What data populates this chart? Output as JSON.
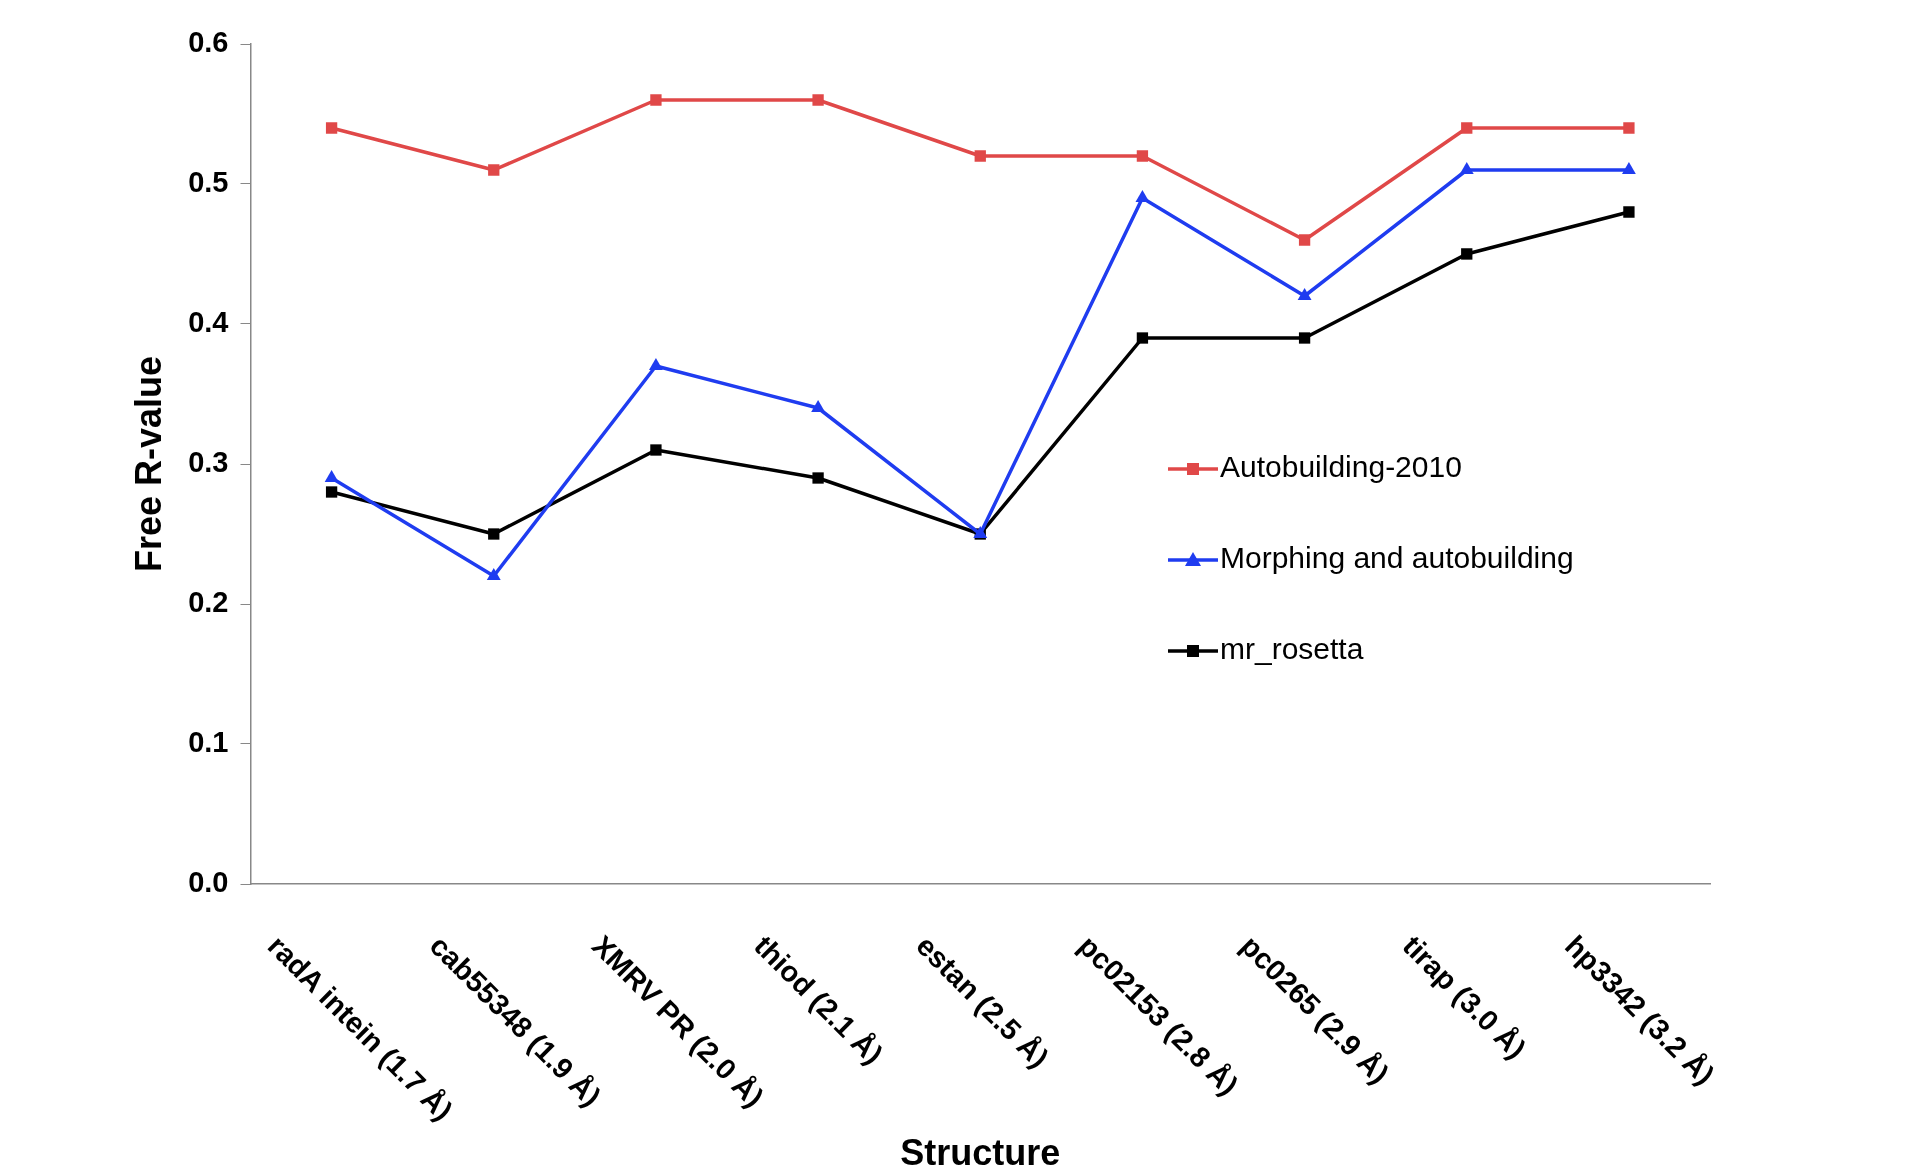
{
  "chart_data": {
    "type": "line",
    "xlabel": "Structure",
    "ylabel": "Free R-value",
    "categories": [
      "radA intein (1.7 Å)",
      "cab55348 (1.9 Å)",
      "XMRV PR (2.0 Å)",
      "thiod (2.1 Å)",
      "estan (2.5 Å)",
      "pc02153 (2.8 Å)",
      "pc0265 (2.9 Å)",
      "tirap (3.0 Å)",
      "hp3342 (3.2 Å)"
    ],
    "series": [
      {
        "name": "Autobuilding-2010",
        "color": "#e04848",
        "marker": "square",
        "values": [
          0.54,
          0.51,
          0.56,
          0.56,
          0.52,
          0.52,
          0.46,
          0.54,
          0.54
        ]
      },
      {
        "name": "Morphing and autobuilding",
        "color": "#1f3cf0",
        "marker": "triangle",
        "values": [
          0.29,
          0.22,
          0.37,
          0.34,
          0.25,
          0.49,
          0.42,
          0.51,
          0.51
        ]
      },
      {
        "name": "mr_rosetta",
        "color": "#000000",
        "marker": "square",
        "values": [
          0.28,
          0.25,
          0.31,
          0.29,
          0.25,
          0.39,
          0.39,
          0.45,
          0.48
        ]
      }
    ],
    "ylim": [
      0,
      0.6
    ],
    "yticks": [
      {
        "value": 0,
        "label": "0.0"
      },
      {
        "value": 0.1,
        "label": "0.1"
      },
      {
        "value": 0.2,
        "label": "0.2"
      },
      {
        "value": 0.3,
        "label": "0.3"
      },
      {
        "value": 0.4,
        "label": "0.4"
      },
      {
        "value": 0.5,
        "label": "0.5"
      },
      {
        "value": 0.6,
        "label": "0.6"
      }
    ],
    "grid": false,
    "legend": "right",
    "line_style": "solid"
  }
}
